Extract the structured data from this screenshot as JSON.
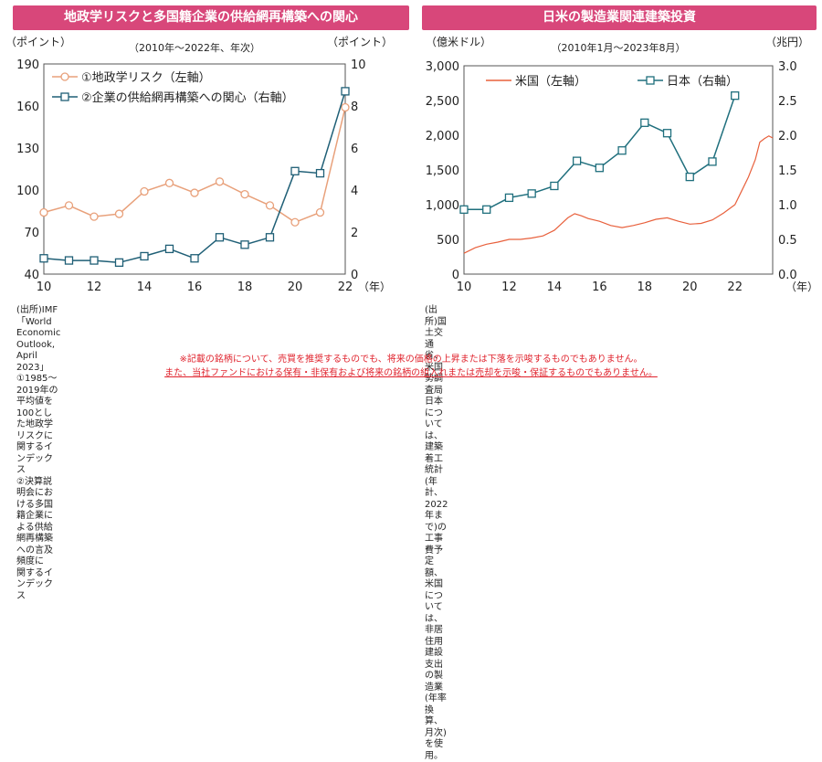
{
  "left": {
    "title": "地政学リスクと多国籍企業の供給網再構築への関心",
    "notes": [
      "(出所)IMF「World Economic Outlook, April 2023」",
      "①1985～2019年の平均値を100とした地政学リスクに関するインデックス",
      "②決算説明会における多国籍企業による供給網再構築への言及頻度に",
      "関するインデックス"
    ]
  },
  "right": {
    "title": "日米の製造業関連建築投資",
    "notes": [
      "(出所)国土交通省、米国勢調査局",
      "日本については、建築着工統計(年計、2022年まで)の工事費予定額、",
      "米国については、非居住用建設支出の製造業(年率換算、月次)を使用。"
    ]
  },
  "disclaimer": [
    "※記載の銘柄について、売買を推奨するものでも、将来の価格の上昇または下落を示唆するものでもありません。",
    "また、当社ファンドにおける保有・非保有および将来の銘柄の組入れまたは売却を示唆・保証するものでもありません。"
  ],
  "colors": {
    "banner": "#d8477a",
    "orange_series": "#e8a07a",
    "blue_series": "#1f5f76",
    "us_line": "#e8603c",
    "jp_line": "#1f6f7d"
  },
  "chart_data": [
    {
      "type": "line",
      "title": "地政学リスクと多国籍企業の供給網再構築への関心",
      "subtitle": "（2010年～2022年、年次）",
      "ylabel_left": "（ポイント）",
      "ylabel_right": "（ポイント）",
      "x_unit": "（年）",
      "xlim": [
        10,
        22
      ],
      "x_ticks": [
        10,
        12,
        14,
        16,
        18,
        20,
        22
      ],
      "ylim_left": [
        40,
        190
      ],
      "y_ticks_left": [
        40,
        70,
        100,
        130,
        160,
        190
      ],
      "ylim_right": [
        0,
        10
      ],
      "y_ticks_right": [
        0,
        2,
        4,
        6,
        8,
        10
      ],
      "series": [
        {
          "name": "①地政学リスク（左軸）",
          "axis": "left",
          "marker": "circle",
          "x": [
            10,
            11,
            12,
            13,
            14,
            15,
            16,
            17,
            18,
            19,
            20,
            21,
            22
          ],
          "values": [
            84,
            89,
            81,
            83,
            99,
            105,
            98,
            106,
            97,
            89,
            77,
            84,
            159
          ]
        },
        {
          "name": "②企業の供給網再構築への関心（右軸）",
          "axis": "right",
          "marker": "square",
          "x": [
            10,
            11,
            12,
            13,
            14,
            15,
            16,
            17,
            18,
            19,
            20,
            21,
            22
          ],
          "values": [
            0.75,
            0.65,
            0.65,
            0.55,
            0.85,
            1.2,
            0.75,
            1.75,
            1.4,
            1.75,
            4.9,
            4.8,
            8.7
          ]
        }
      ]
    },
    {
      "type": "line",
      "title": "日米の製造業関連建築投資",
      "subtitle": "（2010年1月～2023年8月）",
      "ylabel_left": "（億米ドル）",
      "ylabel_right": "（兆円）",
      "x_unit": "（年）",
      "xlim": [
        10,
        23.67
      ],
      "x_ticks": [
        10,
        12,
        14,
        16,
        18,
        20,
        22
      ],
      "ylim_left": [
        0,
        3000
      ],
      "y_ticks_left": [
        "0",
        "500",
        "1,000",
        "1,500",
        "2,000",
        "2,500",
        "3,000"
      ],
      "ylim_right": [
        0,
        3
      ],
      "y_ticks_right": [
        "0.0",
        "0.5",
        "1.0",
        "1.5",
        "2.0",
        "2.5",
        "3.0"
      ],
      "series": [
        {
          "name": "米国（左軸）",
          "axis": "left",
          "marker": "none",
          "x": [
            10,
            10.5,
            11,
            11.5,
            12,
            12.5,
            13,
            13.5,
            14,
            14.3,
            14.6,
            14.9,
            15.2,
            15.5,
            16,
            16.5,
            17,
            17.5,
            18,
            18.5,
            19,
            19.5,
            20,
            20.5,
            21,
            21.5,
            22,
            22.3,
            22.6,
            22.9,
            23.1,
            23.3,
            23.5,
            23.67
          ],
          "values": [
            300,
            380,
            430,
            460,
            500,
            500,
            520,
            550,
            630,
            720,
            810,
            870,
            840,
            800,
            760,
            700,
            670,
            700,
            740,
            790,
            810,
            760,
            720,
            730,
            780,
            880,
            1000,
            1200,
            1400,
            1650,
            1900,
            1950,
            1990,
            1960
          ]
        },
        {
          "name": "日本（右軸）",
          "axis": "right",
          "marker": "square",
          "x": [
            10,
            11,
            12,
            13,
            14,
            15,
            16,
            17,
            18,
            19,
            20,
            21,
            22
          ],
          "values": [
            0.93,
            0.93,
            1.1,
            1.16,
            1.27,
            1.63,
            1.53,
            1.78,
            2.18,
            2.03,
            1.4,
            1.62,
            2.57
          ]
        }
      ]
    }
  ]
}
